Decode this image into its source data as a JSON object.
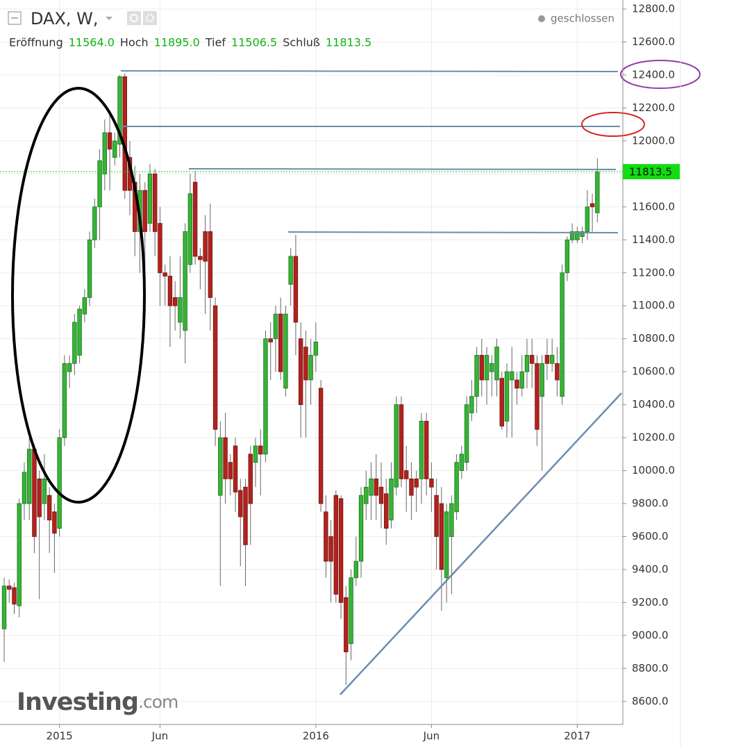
{
  "chart_data": {
    "type": "candlestick",
    "title": "DAX, W,",
    "status": "geschlossen",
    "header_values": [
      {
        "name": "Eröffnung",
        "label": "11564.0"
      },
      {
        "name": "Hoch",
        "label": "11895.0"
      },
      {
        "name": "Tief",
        "label": "11506.5"
      },
      {
        "name": "Schluß",
        "label": "11813.5"
      }
    ],
    "watermark": [
      "Investing",
      ".com"
    ],
    "categories": [
      null,
      null,
      null,
      null,
      null,
      null,
      null,
      null,
      null,
      null,
      null,
      "2015",
      null,
      null,
      null,
      null,
      null,
      null,
      null,
      null,
      null,
      null,
      null,
      null,
      null,
      null,
      null,
      null,
      null,
      null,
      null,
      "Jun",
      null,
      null,
      null,
      null,
      null,
      null,
      null,
      null,
      null,
      null,
      null,
      null,
      null,
      null,
      null,
      null,
      null,
      null,
      null,
      null,
      null,
      null,
      null,
      null,
      null,
      null,
      null,
      null,
      null,
      null,
      "2016",
      null,
      null,
      null,
      null,
      null,
      null,
      null,
      null,
      null,
      null,
      null,
      null,
      null,
      null,
      null,
      null,
      null,
      null,
      null,
      null,
      null,
      null,
      "Jun",
      null,
      null,
      null,
      null,
      null,
      null,
      null,
      null,
      null,
      null,
      null,
      null,
      null,
      null,
      null,
      null,
      null,
      null,
      null,
      null,
      null,
      null,
      null,
      null,
      null,
      null,
      null,
      null,
      "2017",
      null,
      null,
      null,
      null
    ],
    "open": [
      9040,
      9300,
      9290,
      9180,
      9800,
      9800,
      10130,
      9950,
      9800,
      9850,
      9750,
      9650,
      10200,
      10600,
      10650,
      10700,
      10950,
      11050,
      11400,
      11600,
      11800,
      12050,
      11900,
      11980,
      12390,
      11900,
      11750,
      11450,
      11700,
      11500,
      11800,
      11500,
      11200,
      11180,
      11050,
      10900,
      10850,
      11250,
      11750,
      11300,
      11450,
      11450,
      11000,
      9850,
      10200,
      10050,
      10150,
      9880,
      9900,
      10100,
      10050,
      10150,
      10100,
      10800,
      10800,
      10950,
      10500,
      11130,
      11300,
      10800,
      10750,
      10550,
      10700,
      10500,
      9750,
      9600,
      9850,
      9830,
      9230,
      8950,
      9350,
      9450,
      9800,
      9850,
      9950,
      9900,
      9860,
      9700,
      9900,
      10400,
      10000,
      9950,
      9950,
      9950,
      10300,
      9950,
      9850,
      9800,
      9350,
      9600,
      9750,
      10000,
      10050,
      10350,
      10450,
      10700,
      10550,
      10600,
      10550,
      10560,
      10300,
      10550,
      10550,
      10500,
      10600,
      10700,
      10650,
      10450,
      10700,
      10650,
      10650,
      10450,
      11200,
      11400,
      11400,
      11420,
      11450,
      11620,
      11564
    ],
    "high": [
      9350,
      9340,
      9320,
      9830,
      10050,
      10200,
      10160,
      10000,
      10100,
      9900,
      9800,
      10250,
      10700,
      10700,
      10950,
      11000,
      11100,
      11450,
      11650,
      11950,
      12130,
      12180,
      12050,
      12400,
      12410,
      12000,
      11850,
      11800,
      11750,
      11860,
      11830,
      11600,
      11250,
      11300,
      11150,
      11300,
      11500,
      11800,
      11820,
      11350,
      11550,
      11620,
      11050,
      10300,
      10350,
      10100,
      10200,
      9950,
      9950,
      10150,
      10200,
      10250,
      10850,
      10900,
      11000,
      11050,
      11000,
      11350,
      11430,
      10900,
      10850,
      10800,
      10900,
      10550,
      9850,
      9700,
      9880,
      9850,
      9300,
      9400,
      9600,
      9900,
      10000,
      10050,
      10100,
      10050,
      9950,
      10050,
      10450,
      10450,
      10150,
      10050,
      10000,
      10350,
      10350,
      10050,
      9950,
      9900,
      9800,
      9850,
      10100,
      10150,
      10450,
      10550,
      10750,
      10800,
      10750,
      10700,
      10800,
      10600,
      10650,
      10750,
      10600,
      10700,
      10800,
      10800,
      10700,
      10700,
      10800,
      10800,
      10750,
      11250,
      11420,
      11500,
      11480,
      11480,
      11700,
      11680,
      11895
    ],
    "low": [
      8840,
      9200,
      9130,
      9110,
      9700,
      9700,
      9500,
      9220,
      9700,
      9500,
      9380,
      9600,
      10150,
      10500,
      10580,
      10650,
      10900,
      11000,
      11350,
      11400,
      11700,
      11700,
      11850,
      11900,
      11650,
      11550,
      11300,
      11200,
      11150,
      11450,
      11300,
      11000,
      11000,
      10750,
      10850,
      10800,
      10650,
      11200,
      11250,
      11100,
      10950,
      10850,
      10150,
      9300,
      9800,
      9850,
      9750,
      9420,
      9300,
      9550,
      9900,
      9850,
      10050,
      10550,
      10600,
      10550,
      10450,
      11000,
      10700,
      10200,
      10200,
      10400,
      10600,
      9750,
      9350,
      9200,
      9200,
      9100,
      8700,
      8850,
      9300,
      9350,
      9700,
      9700,
      9700,
      9650,
      9550,
      9650,
      9850,
      9900,
      9750,
      9700,
      9750,
      9800,
      9850,
      9750,
      9400,
      9150,
      9200,
      9250,
      9700,
      9950,
      10000,
      10300,
      10350,
      10450,
      10400,
      10450,
      10450,
      10250,
      10200,
      10200,
      10400,
      10450,
      10500,
      10500,
      10150,
      10000,
      10550,
      10600,
      10450,
      10400,
      11150,
      11380,
      11380,
      11380,
      11400,
      11450,
      11506.5
    ],
    "close": [
      9300,
      9280,
      9190,
      9800,
      9990,
      10130,
      9600,
      9720,
      9950,
      9700,
      9620,
      10200,
      10650,
      10650,
      10900,
      10980,
      11050,
      11400,
      11600,
      11880,
      12050,
      11950,
      12000,
      12390,
      11700,
      11700,
      11450,
      11700,
      11450,
      11800,
      11450,
      11200,
      11180,
      11000,
      11000,
      11050,
      11450,
      11680,
      11300,
      11280,
      11270,
      11050,
      10250,
      10200,
      9950,
      9950,
      9870,
      9720,
      9550,
      9800,
      10150,
      10100,
      10800,
      10780,
      10950,
      10600,
      10950,
      11300,
      10900,
      10400,
      10550,
      10700,
      10780,
      9800,
      9450,
      9450,
      9250,
      9200,
      8900,
      9350,
      9450,
      9850,
      9900,
      9950,
      9850,
      9800,
      9650,
      9950,
      10400,
      9950,
      9950,
      9850,
      9900,
      10300,
      9950,
      9900,
      9600,
      9400,
      9750,
      9800,
      10050,
      10100,
      10400,
      10450,
      10700,
      10550,
      10700,
      10650,
      10750,
      10270,
      10600,
      10600,
      10500,
      10600,
      10700,
      10650,
      10250,
      10650,
      10650,
      10700,
      10550,
      11200,
      11400,
      11450,
      11450,
      11450,
      11600,
      11600,
      11813.5
    ],
    "up_color": "#35b535",
    "down_color": "#b3221d",
    "ylim": [
      8460,
      12855
    ],
    "yticks": [
      {
        "value": 8600,
        "label": "8600.0"
      },
      {
        "value": 8800,
        "label": "8800.0"
      },
      {
        "value": 9000,
        "label": "9000.0"
      },
      {
        "value": 9200,
        "label": "9200.0"
      },
      {
        "value": 9400,
        "label": "9400.0"
      },
      {
        "value": 9600,
        "label": "9600.0"
      },
      {
        "value": 9800,
        "label": "9800.0"
      },
      {
        "value": 10000,
        "label": "10000.0"
      },
      {
        "value": 10200,
        "label": "10200.0"
      },
      {
        "value": 10400,
        "label": "10400.0"
      },
      {
        "value": 10600,
        "label": "10600.0"
      },
      {
        "value": 10800,
        "label": "10800.0"
      },
      {
        "value": 11000,
        "label": "11000.0"
      },
      {
        "value": 11200,
        "label": "11200.0"
      },
      {
        "value": 11400,
        "label": "11400.0"
      },
      {
        "value": 11600,
        "label": "11600.0"
      },
      {
        "value": 11800,
        "label": "11800.0"
      },
      {
        "value": 12000,
        "label": "12000.0"
      },
      {
        "value": 12200,
        "label": "12200.0"
      },
      {
        "value": 12400,
        "label": "12400.0"
      },
      {
        "value": 12600,
        "label": "12600.0"
      },
      {
        "value": 12800,
        "label": "12800.0"
      }
    ],
    "grid": true
  }
}
